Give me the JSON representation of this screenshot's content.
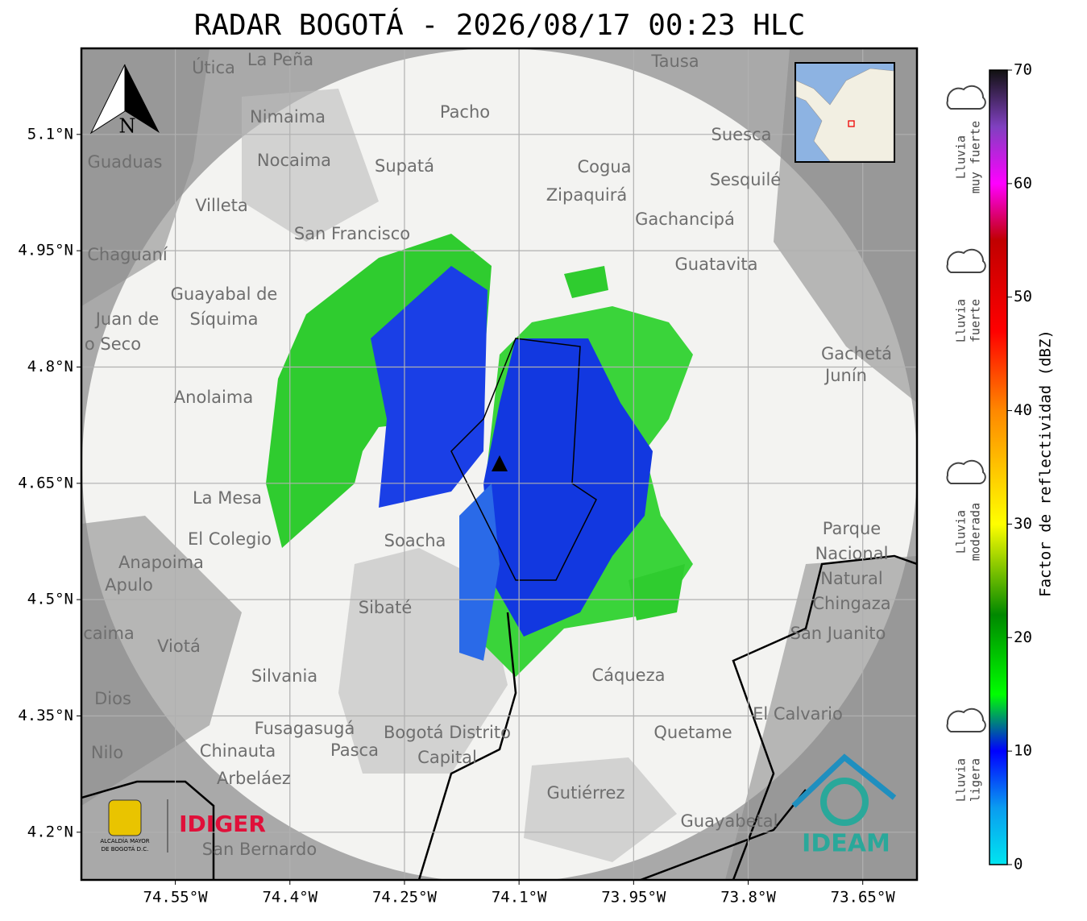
{
  "title": "RADAR BOGOTÁ - 2026/08/17 00:23 HLC",
  "map": {
    "xlim": [
      -74.673,
      -73.579
    ],
    "ylim": [
      4.1385,
      5.211
    ],
    "xticks": [
      {
        "value": -74.55,
        "label": "74.55°W"
      },
      {
        "value": -74.4,
        "label": "74.4°W"
      },
      {
        "value": -74.25,
        "label": "74.25°W"
      },
      {
        "value": -74.1,
        "label": "74.1°W"
      },
      {
        "value": -73.95,
        "label": "73.95°W"
      },
      {
        "value": -73.8,
        "label": "73.8°W"
      },
      {
        "value": -73.65,
        "label": "73.65°W"
      }
    ],
    "yticks": [
      {
        "value": 5.1,
        "label": "5.1°N"
      },
      {
        "value": 4.95,
        "label": "4.95°N"
      },
      {
        "value": 4.8,
        "label": "4.8°N"
      },
      {
        "value": 4.65,
        "label": "4.65°N"
      },
      {
        "value": 4.5,
        "label": "4.5°N"
      },
      {
        "value": 4.35,
        "label": "4.35°N"
      },
      {
        "value": 4.2,
        "label": "4.2°N"
      }
    ],
    "grid": true,
    "north": "N",
    "places": [
      "La Peña",
      "Útica",
      "Tausa",
      "Pacho",
      "Nimaima",
      "Suesca",
      "Guaduas",
      "Nocaima",
      "Supatá",
      "Cogua",
      "Sesquilé",
      "Villeta",
      "Zipaquirá",
      "Gachancipá",
      "San Francisco",
      "Chaguaní",
      "Guatavita",
      "Guayabal de",
      "Síquima",
      "Juan de",
      "o Seco",
      "Gachetá",
      "Junín",
      "Anolaima",
      "La Mesa",
      "El Colegio",
      "Soacha",
      "Anapoima",
      "Apulo",
      "Parque",
      "Nacional",
      "Natural",
      "Chingaza",
      "Sibaté",
      "San Juanito",
      "caima",
      "Viotá",
      "Cáqueza",
      "Silvania",
      "Dios",
      "El Calvario",
      "Fusagasugá",
      "Bogotá Distrito",
      "Capital",
      "Quetame",
      "Nilo",
      "Chinauta",
      "Pasca",
      "Arbeláez",
      "Gutiérrez",
      "Guayabetal",
      "San Bernardo"
    ],
    "logos": {
      "alcaldia": [
        "ALCALDÍA MAYOR",
        "DE BOGOTÁ D.C."
      ],
      "idiger": "IDIGER",
      "ideam": "IDEAM"
    }
  },
  "colorbar": {
    "label": "Factor de reflectividad (dBZ)",
    "range": [
      0,
      70
    ],
    "ticks": [
      0,
      10,
      20,
      30,
      40,
      50,
      60,
      70
    ],
    "stops": [
      {
        "value": 0,
        "color": "#00e5f0"
      },
      {
        "value": 5,
        "color": "#0a9cf0"
      },
      {
        "value": 10,
        "color": "#0000ff"
      },
      {
        "value": 15,
        "color": "#00ff00"
      },
      {
        "value": 22,
        "color": "#008800"
      },
      {
        "value": 30,
        "color": "#ffff00"
      },
      {
        "value": 40,
        "color": "#ff8800"
      },
      {
        "value": 47,
        "color": "#ff0000"
      },
      {
        "value": 55,
        "color": "#c00000"
      },
      {
        "value": 60,
        "color": "#ff00ff"
      },
      {
        "value": 65,
        "color": "#8040c0"
      },
      {
        "value": 70,
        "color": "#111111"
      }
    ],
    "categories": [
      [
        "Lluvia",
        "muy fuerte"
      ],
      [
        "Lluvia",
        "fuerte"
      ],
      [
        "Lluvia",
        "moderada"
      ],
      [
        "Lluvia",
        "ligera"
      ]
    ]
  }
}
